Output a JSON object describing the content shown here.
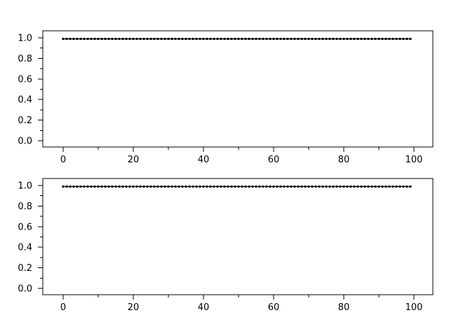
{
  "figure": {
    "background": "#ffffff",
    "axis_color": "#000000",
    "series_color": "#000000"
  },
  "chart_data": [
    {
      "type": "line",
      "title": "",
      "xlabel": "",
      "ylabel": "",
      "grid": false,
      "legend": null,
      "marker": "filled-square",
      "series_color": "#000000",
      "axis_color": "#000000",
      "x": [
        0,
        1,
        2,
        3,
        4,
        5,
        6,
        7,
        8,
        9,
        10,
        11,
        12,
        13,
        14,
        15,
        16,
        17,
        18,
        19,
        20,
        21,
        22,
        23,
        24,
        25,
        26,
        27,
        28,
        29,
        30,
        31,
        32,
        33,
        34,
        35,
        36,
        37,
        38,
        39,
        40,
        41,
        42,
        43,
        44,
        45,
        46,
        47,
        48,
        49,
        50,
        51,
        52,
        53,
        54,
        55,
        56,
        57,
        58,
        59,
        60,
        61,
        62,
        63,
        64,
        65,
        66,
        67,
        68,
        69,
        70,
        71,
        72,
        73,
        74,
        75,
        76,
        77,
        78,
        79,
        80,
        81,
        82,
        83,
        84,
        85,
        86,
        87,
        88,
        89,
        90,
        91,
        92,
        93,
        94,
        95,
        96,
        97,
        98,
        99
      ],
      "y_constant": 0.99,
      "xlim": [
        -5.8,
        105.4
      ],
      "ylim": [
        -0.061,
        1.068
      ],
      "x_major_ticks": [
        0,
        20,
        40,
        60,
        80,
        100
      ],
      "x_major_tick_labels": [
        "0",
        "20",
        "40",
        "60",
        "80",
        "100"
      ],
      "x_minor_ticks": [
        10,
        30,
        50,
        70,
        90
      ],
      "y_major_ticks": [
        0,
        0.2,
        0.4,
        0.6,
        0.8,
        1
      ],
      "y_major_tick_labels": [
        "0.0",
        "0.2",
        "0.4",
        "0.6",
        "0.8",
        "1.0"
      ],
      "y_minor_ticks": [
        0.1,
        0.3,
        0.5,
        0.7,
        0.9
      ]
    },
    {
      "type": "line",
      "title": "",
      "xlabel": "",
      "ylabel": "",
      "grid": false,
      "legend": null,
      "marker": "filled-square",
      "series_color": "#000000",
      "axis_color": "#000000",
      "x": [
        0,
        1,
        2,
        3,
        4,
        5,
        6,
        7,
        8,
        9,
        10,
        11,
        12,
        13,
        14,
        15,
        16,
        17,
        18,
        19,
        20,
        21,
        22,
        23,
        24,
        25,
        26,
        27,
        28,
        29,
        30,
        31,
        32,
        33,
        34,
        35,
        36,
        37,
        38,
        39,
        40,
        41,
        42,
        43,
        44,
        45,
        46,
        47,
        48,
        49,
        50,
        51,
        52,
        53,
        54,
        55,
        56,
        57,
        58,
        59,
        60,
        61,
        62,
        63,
        64,
        65,
        66,
        67,
        68,
        69,
        70,
        71,
        72,
        73,
        74,
        75,
        76,
        77,
        78,
        79,
        80,
        81,
        82,
        83,
        84,
        85,
        86,
        87,
        88,
        89,
        90,
        91,
        92,
        93,
        94,
        95,
        96,
        97,
        98,
        99
      ],
      "y_constant": 0.99,
      "xlim": [
        -5.8,
        105.4
      ],
      "ylim": [
        -0.061,
        1.068
      ],
      "x_major_ticks": [
        0,
        20,
        40,
        60,
        80,
        100
      ],
      "x_major_tick_labels": [
        "0",
        "20",
        "40",
        "60",
        "80",
        "100"
      ],
      "x_minor_ticks": [
        10,
        30,
        50,
        70,
        90
      ],
      "y_major_ticks": [
        0,
        0.2,
        0.4,
        0.6,
        0.8,
        1
      ],
      "y_major_tick_labels": [
        "0.0",
        "0.2",
        "0.4",
        "0.6",
        "0.8",
        "1.0"
      ],
      "y_minor_ticks": [
        0.1,
        0.3,
        0.5,
        0.7,
        0.9
      ]
    }
  ]
}
